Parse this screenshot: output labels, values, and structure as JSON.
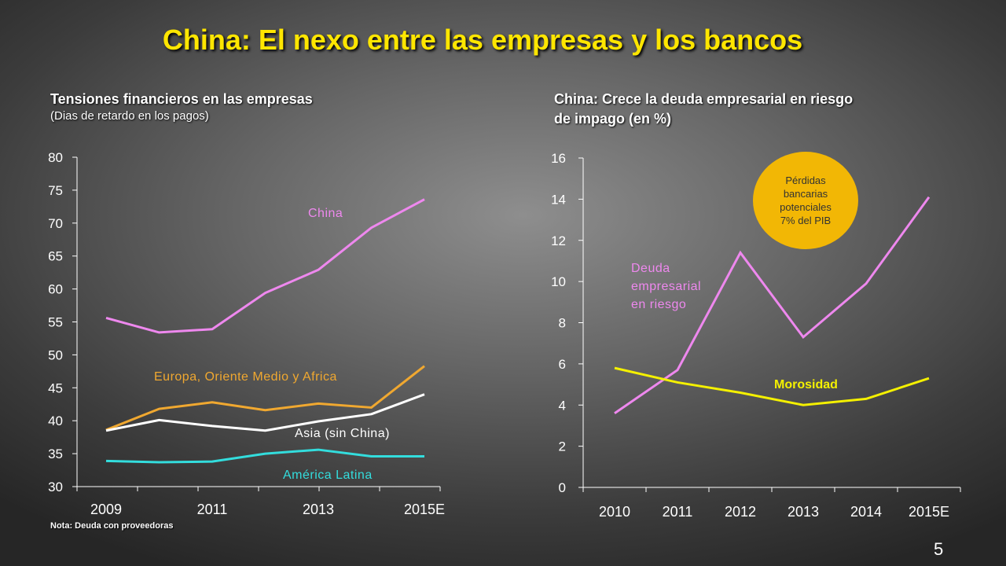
{
  "slide": {
    "title": "China: El nexo entre las empresas y los bancos",
    "left_heading": "Tensiones financieros en las empresas",
    "left_subheading": "(Dias de retardo en los pagos)",
    "right_heading_line1": "China: Crece la deuda empresarial en riesgo",
    "right_heading_line2": "de impago (en %)",
    "note": "Nota: Deuda con proveedoras",
    "slide_number": "5",
    "bubble_lines": [
      "Pérdidas",
      "bancarias",
      "potenciales",
      "7% del PIB"
    ]
  },
  "chart_data": [
    {
      "type": "line",
      "title": "Tensiones financieros en las empresas",
      "subtitle": "(Dias de retardo en los pagos)",
      "x": [
        2009,
        2010,
        2011,
        2012,
        2013,
        2014,
        2015
      ],
      "x_tick_labels": [
        "2009",
        "2011",
        "2013",
        "2015E"
      ],
      "x_tick_positions": [
        2009,
        2011,
        2013,
        2015
      ],
      "xlim": [
        2009,
        2015
      ],
      "ylim": [
        30,
        80
      ],
      "y_ticks": [
        30,
        35,
        40,
        45,
        50,
        55,
        60,
        65,
        70,
        75,
        80
      ],
      "grid": false,
      "series": [
        {
          "name": "China",
          "color": "#ee88ee",
          "values": [
            55.6,
            53.4,
            53.9,
            59.4,
            62.9,
            69.3,
            73.6
          ]
        },
        {
          "name": "Europa, Oriente Medio y Africa",
          "color": "#f0a830",
          "values": [
            38.6,
            41.8,
            42.8,
            41.6,
            42.6,
            42.0,
            48.3
          ]
        },
        {
          "name": "Asia (sin China)",
          "color": "#ffffff",
          "values": [
            38.5,
            40.1,
            39.2,
            38.5,
            39.9,
            41.0,
            44.0
          ]
        },
        {
          "name": "América Latina",
          "color": "#33dddd",
          "values": [
            33.9,
            33.7,
            33.8,
            35.0,
            35.6,
            34.6,
            34.6
          ]
        }
      ]
    },
    {
      "type": "line",
      "title": "China: Crece la deuda empresarial en riesgo de impago (en %)",
      "categories": [
        "2010",
        "2011",
        "2012",
        "2013",
        "2014",
        "2015E"
      ],
      "ylim": [
        0,
        16
      ],
      "y_ticks": [
        0,
        2,
        4,
        6,
        8,
        10,
        12,
        14,
        16
      ],
      "grid": false,
      "series": [
        {
          "name": "Deuda empresarial en riesgo",
          "color": "#ee88ee",
          "values": [
            3.6,
            5.7,
            11.4,
            7.3,
            9.9,
            14.1
          ]
        },
        {
          "name": "Morosidad",
          "color": "#f4f000",
          "values": [
            5.8,
            5.1,
            4.6,
            4.0,
            4.3,
            5.3
          ]
        }
      ],
      "annotation": "Pérdidas bancarias potenciales 7% del PIB"
    }
  ]
}
